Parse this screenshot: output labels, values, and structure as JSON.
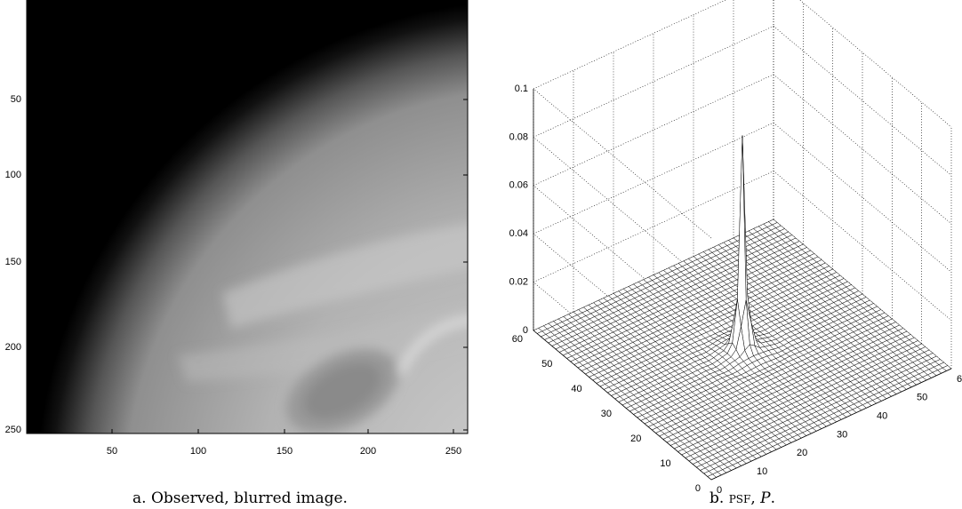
{
  "figure": {
    "panels": [
      {
        "yticks": [
          "50",
          "100",
          "150",
          "200",
          "250"
        ],
        "xticks": [
          "50",
          "100",
          "150",
          "200",
          "250"
        ],
        "caption": "a. Observed, blurred image."
      },
      {
        "zticks": [
          "0",
          "0.02",
          "0.04",
          "0.06",
          "0.08",
          "0.1"
        ],
        "yticks": [
          "0",
          "10",
          "20",
          "30",
          "40",
          "50",
          "60"
        ],
        "xticks": [
          "0",
          "10",
          "20",
          "30",
          "40",
          "50",
          "6"
        ],
        "caption": {
          "label": "b.",
          "abbr": "psf",
          "sep": ",",
          "symbol": "P",
          "end": "."
        }
      }
    ]
  }
}
